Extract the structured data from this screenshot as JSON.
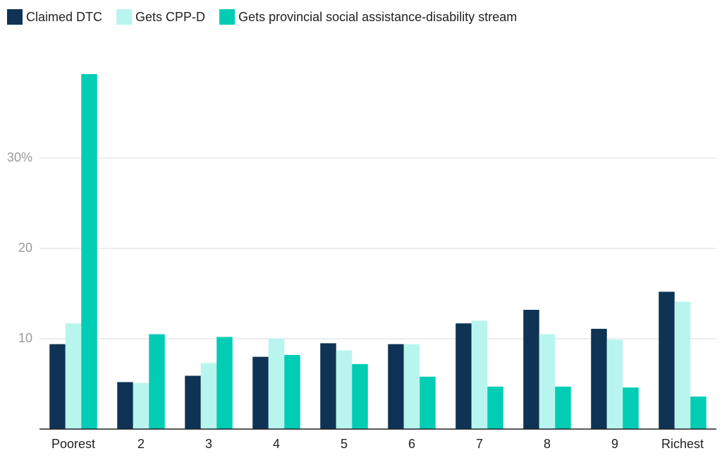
{
  "chart_data": {
    "type": "bar",
    "categories": [
      "Poorest",
      "2",
      "3",
      "4",
      "5",
      "6",
      "7",
      "8",
      "9",
      "Richest"
    ],
    "series": [
      {
        "name": "Claimed DTC",
        "color": "#0e3354",
        "values": [
          9.4,
          5.2,
          5.9,
          8.0,
          9.5,
          9.4,
          11.7,
          13.2,
          11.1,
          15.2
        ]
      },
      {
        "name": "Gets CPP-D",
        "color": "#b8f5ee",
        "values": [
          11.7,
          5.1,
          7.3,
          10.0,
          8.7,
          9.4,
          12.0,
          10.5,
          9.9,
          14.1
        ]
      },
      {
        "name": "Gets provincial social assistance-disability stream",
        "color": "#00cdb4",
        "values": [
          39.3,
          10.5,
          10.2,
          8.2,
          7.2,
          5.8,
          4.7,
          4.7,
          4.6,
          3.6
        ]
      }
    ],
    "ylim": [
      0,
      40
    ],
    "yticks": [
      10,
      20,
      {
        "value": 30,
        "label": "30%"
      }
    ],
    "grid": true,
    "legend": "top-left"
  }
}
